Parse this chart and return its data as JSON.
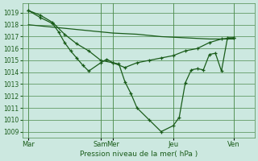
{
  "background_color": "#cce8e0",
  "grid_color": "#4d8c4d",
  "line_color": "#1a5c1a",
  "marker": "+",
  "xlabel": "Pression niveau de la mer( hPa )",
  "ylim": [
    1008.5,
    1019.8
  ],
  "yticks": [
    1009,
    1010,
    1011,
    1012,
    1013,
    1014,
    1015,
    1016,
    1017,
    1018,
    1019
  ],
  "xtick_labels": [
    "Mar",
    "Sam",
    "Mer",
    "Jeu",
    "Ven"
  ],
  "xtick_positions": [
    0,
    24,
    28,
    48,
    68
  ],
  "xlim": [
    -2,
    75
  ],
  "line1_x": [
    0,
    8,
    16,
    24,
    28,
    36,
    44,
    52,
    60,
    68
  ],
  "line1_y": [
    1018.0,
    1017.8,
    1017.6,
    1017.4,
    1017.3,
    1017.2,
    1017.0,
    1016.9,
    1016.8,
    1016.8
  ],
  "line2_x": [
    0,
    4,
    8,
    12,
    16,
    20,
    24,
    28,
    32,
    36,
    40,
    44,
    48,
    52,
    56,
    60,
    64,
    68
  ],
  "line2_y": [
    1019.2,
    1018.8,
    1018.2,
    1017.2,
    1016.4,
    1015.8,
    1015.0,
    1014.8,
    1014.4,
    1014.8,
    1015.0,
    1015.2,
    1015.4,
    1015.8,
    1016.0,
    1016.5,
    1016.8,
    1016.9
  ],
  "line3_x": [
    0,
    4,
    8,
    10,
    12,
    14,
    16,
    18,
    20,
    24,
    26,
    28,
    30,
    32,
    34,
    36,
    40,
    44,
    48,
    50,
    52,
    54,
    56,
    58,
    60,
    62,
    64,
    66,
    68
  ],
  "line3_y": [
    1019.2,
    1018.6,
    1018.1,
    1017.4,
    1016.5,
    1015.8,
    1015.2,
    1014.6,
    1014.1,
    1014.8,
    1015.1,
    1014.8,
    1014.7,
    1013.2,
    1012.2,
    1011.0,
    1010.0,
    1009.0,
    1009.5,
    1010.2,
    1013.1,
    1014.2,
    1014.3,
    1014.2,
    1015.5,
    1015.6,
    1014.1,
    1016.9,
    1016.9
  ]
}
